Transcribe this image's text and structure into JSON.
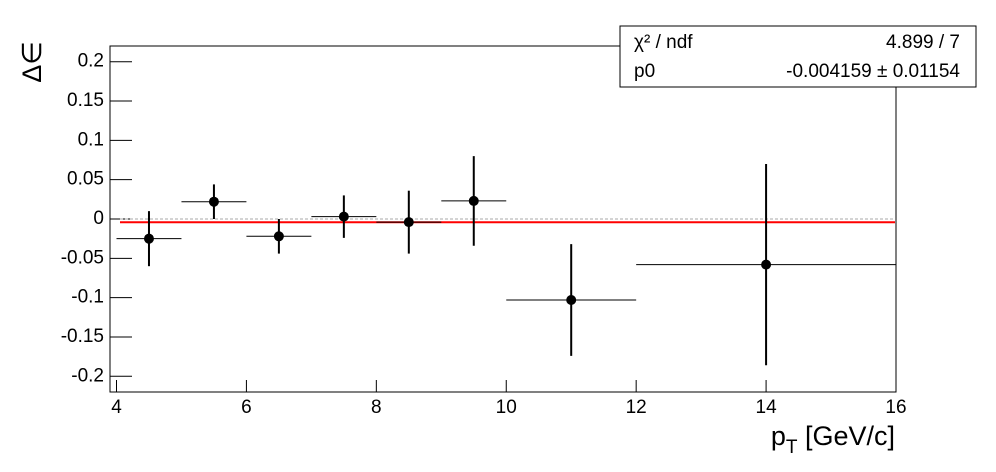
{
  "chart_data": {
    "type": "scatter",
    "y_label": "Δ∈",
    "x_label": [
      "p",
      "T",
      " [GeV/c]"
    ],
    "xlim": [
      3.9,
      16
    ],
    "ylim": [
      -0.22,
      0.22
    ],
    "xticks": [
      4,
      6,
      8,
      10,
      12,
      14,
      16
    ],
    "yticks": [
      -0.2,
      -0.15,
      -0.1,
      -0.05,
      0,
      0.05,
      0.1,
      0.15,
      0.2
    ],
    "series": [
      {
        "color": "#000000",
        "x": [
          4.5,
          5.5,
          6.5,
          7.5,
          8.5,
          9.5,
          11,
          14
        ],
        "xerr": [
          0.5,
          0.5,
          0.5,
          0.5,
          0.5,
          0.5,
          1,
          2
        ],
        "values": [
          -0.025,
          0.022,
          -0.022,
          0.003,
          -0.004,
          0.023,
          -0.103,
          -0.058
        ],
        "yerr": [
          0.035,
          0.022,
          0.022,
          0.027,
          0.04,
          0.057,
          0.071,
          0.128
        ]
      }
    ],
    "fit": {
      "value": -0.004159,
      "color": "#ff0000"
    },
    "stats": [
      [
        "χ² / ndf",
        "4.899 / 7"
      ],
      [
        "p0",
        "-0.004159 ± 0.01154"
      ]
    ]
  }
}
